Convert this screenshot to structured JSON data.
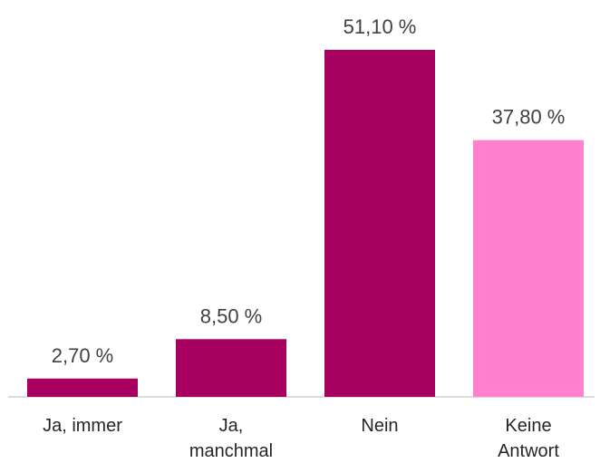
{
  "chart_data": {
    "type": "bar",
    "categories": [
      "Ja, immer",
      "Ja, manchmal",
      "Nein",
      "Keine Antwort"
    ],
    "values": [
      2.7,
      8.5,
      51.1,
      37.8
    ],
    "value_labels": [
      "2,70 %",
      "8,50 %",
      "51,10 %",
      "37,80 %"
    ],
    "colors": [
      "#a8005f",
      "#a8005f",
      "#a8005f",
      "#ff80cf"
    ]
  }
}
